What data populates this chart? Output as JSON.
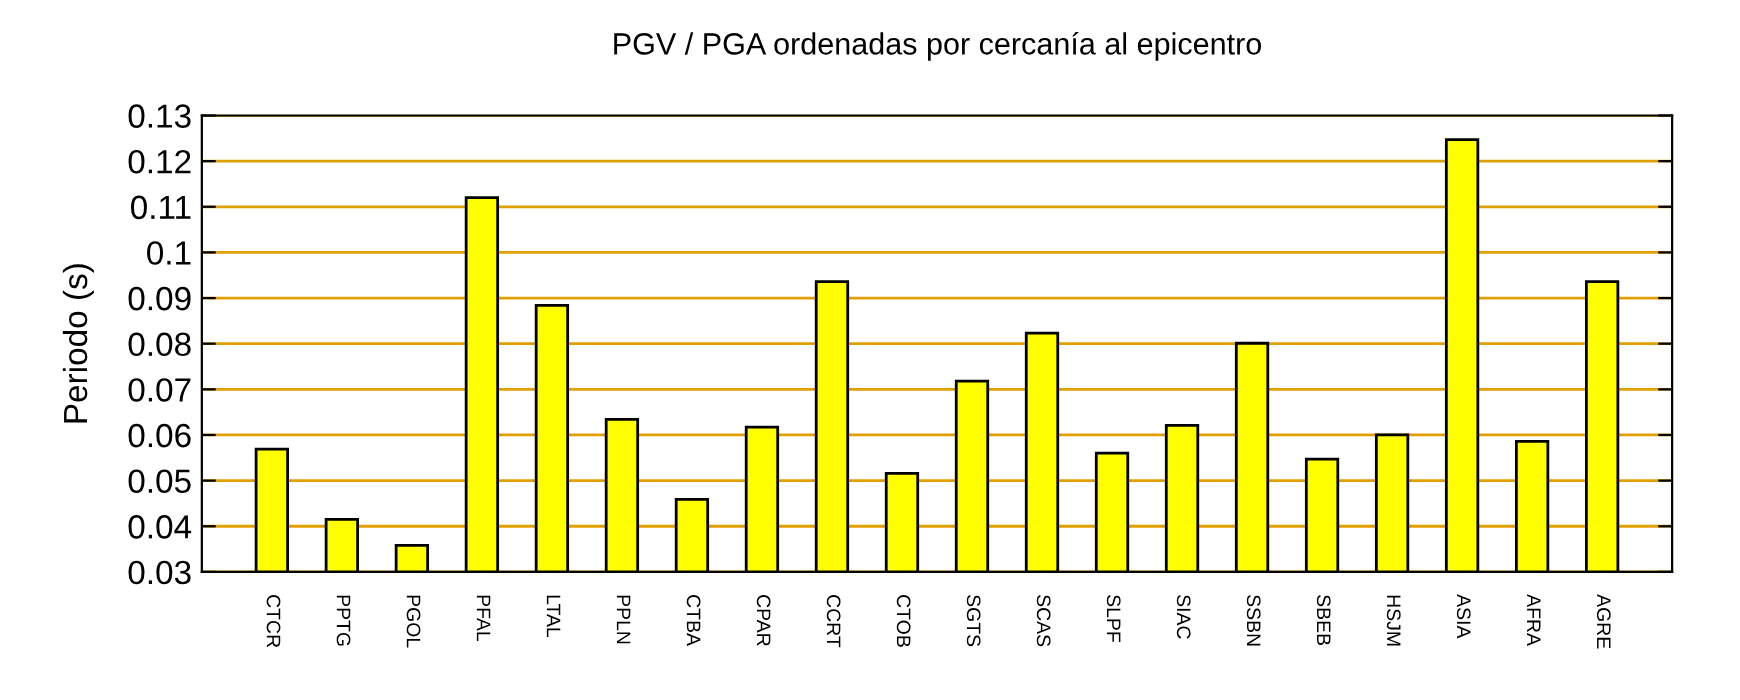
{
  "chart_data": {
    "type": "bar",
    "title": "PGV / PGA ordenadas por cercanía al epicentro",
    "ylabel": "Periodo (s)",
    "categories": [
      "CTCR",
      "PPTG",
      "PGOL",
      "PFAL",
      "LTAL",
      "PPLN",
      "CTBA",
      "CPAR",
      "CCRT",
      "CTOB",
      "SGTS",
      "SCAS",
      "SLPF",
      "SIAC",
      "SSBN",
      "SBEB",
      "HSJM",
      "ASIA",
      "AFRA",
      "AGRE"
    ],
    "values": [
      0.0569,
      0.0415,
      0.0358,
      0.112,
      0.0884,
      0.0634,
      0.0459,
      0.0617,
      0.0936,
      0.0516,
      0.0718,
      0.0823,
      0.056,
      0.0621,
      0.0801,
      0.0547,
      0.06,
      0.1247,
      0.0586,
      0.0936
    ],
    "color": "#ffff00",
    "ylim": [
      0.03,
      0.13
    ],
    "yticks": [
      0.03,
      0.04,
      0.05,
      0.06,
      0.07,
      0.08,
      0.09,
      0.1,
      0.11,
      0.12,
      0.13
    ],
    "grid": "y",
    "legend": false
  }
}
